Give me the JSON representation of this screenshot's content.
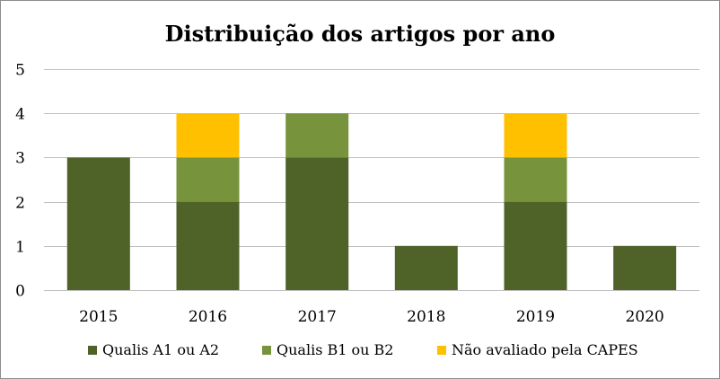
{
  "chart_data": {
    "type": "bar",
    "stacked": true,
    "title": "Distribuição dos artigos por ano",
    "categories": [
      "2015",
      "2016",
      "2017",
      "2018",
      "2019",
      "2020"
    ],
    "series": [
      {
        "name": "Qualis A1 ou A2",
        "color": "#4f6228",
        "values": [
          3,
          2,
          3,
          1,
          2,
          1
        ]
      },
      {
        "name": "Qualis B1 ou B2",
        "color": "#77933c",
        "values": [
          0,
          1,
          1,
          0,
          1,
          0
        ]
      },
      {
        "name": "Não avaliado pela CAPES",
        "color": "#ffc000",
        "values": [
          0,
          1,
          0,
          0,
          1,
          0
        ]
      }
    ],
    "ylim": [
      0,
      5
    ],
    "yticks": [
      0,
      1,
      2,
      3,
      4,
      5
    ],
    "grid": true,
    "legend_position": "bottom"
  }
}
